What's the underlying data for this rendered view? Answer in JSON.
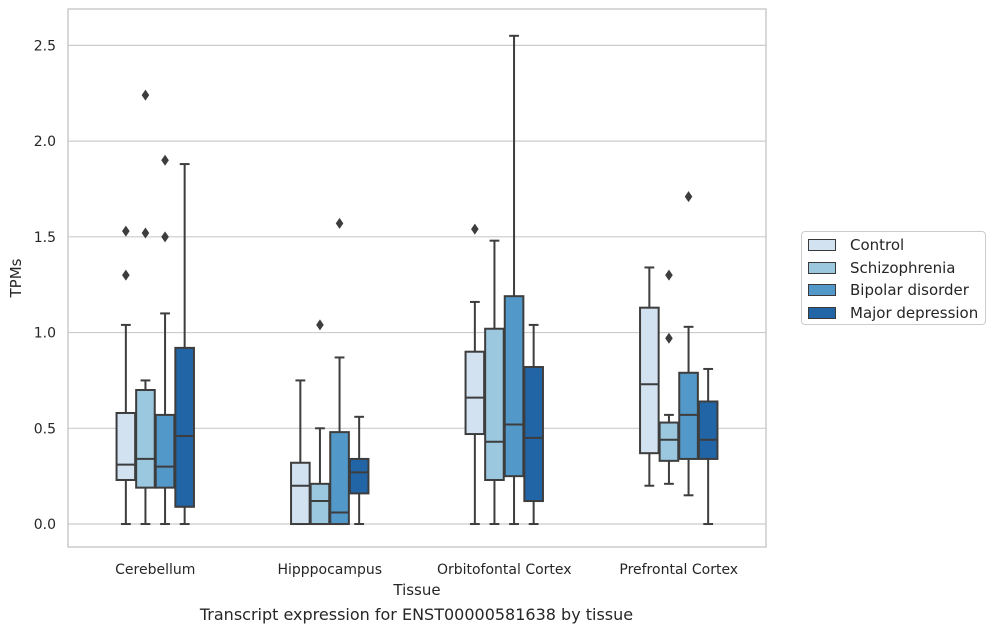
{
  "chart_data": {
    "type": "box",
    "xlabel": "Tissue",
    "ylabel": "TPMs",
    "ylim": [
      -0.12,
      2.69
    ],
    "yticks": [
      "0.0",
      "0.5",
      "1.0",
      "1.5",
      "2.0",
      "2.5"
    ],
    "categories": [
      "Cerebellum",
      "Hipppocampus",
      "Orbitofontal Cortex",
      "Prefrontal Cortex"
    ],
    "grid": "horizontal",
    "legend_position": "right",
    "series": [
      {
        "name": "Control",
        "color": "#d2e2f1",
        "boxes": [
          {
            "whisker_low": 0.0,
            "q1": 0.23,
            "median": 0.31,
            "q3": 0.58,
            "whisker_high": 1.04,
            "outliers": [
              1.3,
              1.53
            ]
          },
          {
            "whisker_low": 0.0,
            "q1": 0.0,
            "median": 0.2,
            "q3": 0.32,
            "whisker_high": 0.75,
            "outliers": []
          },
          {
            "whisker_low": 0.0,
            "q1": 0.47,
            "median": 0.66,
            "q3": 0.9,
            "whisker_high": 1.16,
            "outliers": [
              1.54
            ]
          },
          {
            "whisker_low": 0.2,
            "q1": 0.37,
            "median": 0.73,
            "q3": 1.13,
            "whisker_high": 1.34,
            "outliers": []
          }
        ]
      },
      {
        "name": "Schizophrenia",
        "color": "#9bc7df",
        "boxes": [
          {
            "whisker_low": 0.0,
            "q1": 0.19,
            "median": 0.34,
            "q3": 0.7,
            "whisker_high": 0.75,
            "outliers": [
              1.52,
              2.24
            ]
          },
          {
            "whisker_low": 0.0,
            "q1": 0.0,
            "median": 0.12,
            "q3": 0.21,
            "whisker_high": 0.5,
            "outliers": [
              1.04
            ]
          },
          {
            "whisker_low": 0.0,
            "q1": 0.23,
            "median": 0.43,
            "q3": 1.02,
            "whisker_high": 1.48,
            "outliers": []
          },
          {
            "whisker_low": 0.21,
            "q1": 0.33,
            "median": 0.44,
            "q3": 0.53,
            "whisker_high": 0.57,
            "outliers": [
              0.97,
              1.3
            ]
          }
        ]
      },
      {
        "name": "Bipolar disorder",
        "color": "#5299c9",
        "boxes": [
          {
            "whisker_low": 0.0,
            "q1": 0.19,
            "median": 0.3,
            "q3": 0.57,
            "whisker_high": 1.1,
            "outliers": [
              1.5,
              1.9
            ]
          },
          {
            "whisker_low": 0.0,
            "q1": 0.0,
            "median": 0.06,
            "q3": 0.48,
            "whisker_high": 0.87,
            "outliers": [
              1.57
            ]
          },
          {
            "whisker_low": 0.0,
            "q1": 0.25,
            "median": 0.52,
            "q3": 1.19,
            "whisker_high": 2.55,
            "outliers": []
          },
          {
            "whisker_low": 0.15,
            "q1": 0.34,
            "median": 0.57,
            "q3": 0.79,
            "whisker_high": 1.03,
            "outliers": [
              1.71
            ]
          }
        ]
      },
      {
        "name": "Major depression",
        "color": "#2265a6",
        "boxes": [
          {
            "whisker_low": 0.0,
            "q1": 0.09,
            "median": 0.46,
            "q3": 0.92,
            "whisker_high": 1.88,
            "outliers": []
          },
          {
            "whisker_low": 0.0,
            "q1": 0.16,
            "median": 0.27,
            "q3": 0.34,
            "whisker_high": 0.56,
            "outliers": []
          },
          {
            "whisker_low": 0.0,
            "q1": 0.12,
            "median": 0.45,
            "q3": 0.82,
            "whisker_high": 1.04,
            "outliers": []
          },
          {
            "whisker_low": 0.0,
            "q1": 0.34,
            "median": 0.44,
            "q3": 0.64,
            "whisker_high": 0.81,
            "outliers": []
          }
        ]
      }
    ]
  },
  "caption": "Transcript expression for ENST00000581638 by tissue"
}
